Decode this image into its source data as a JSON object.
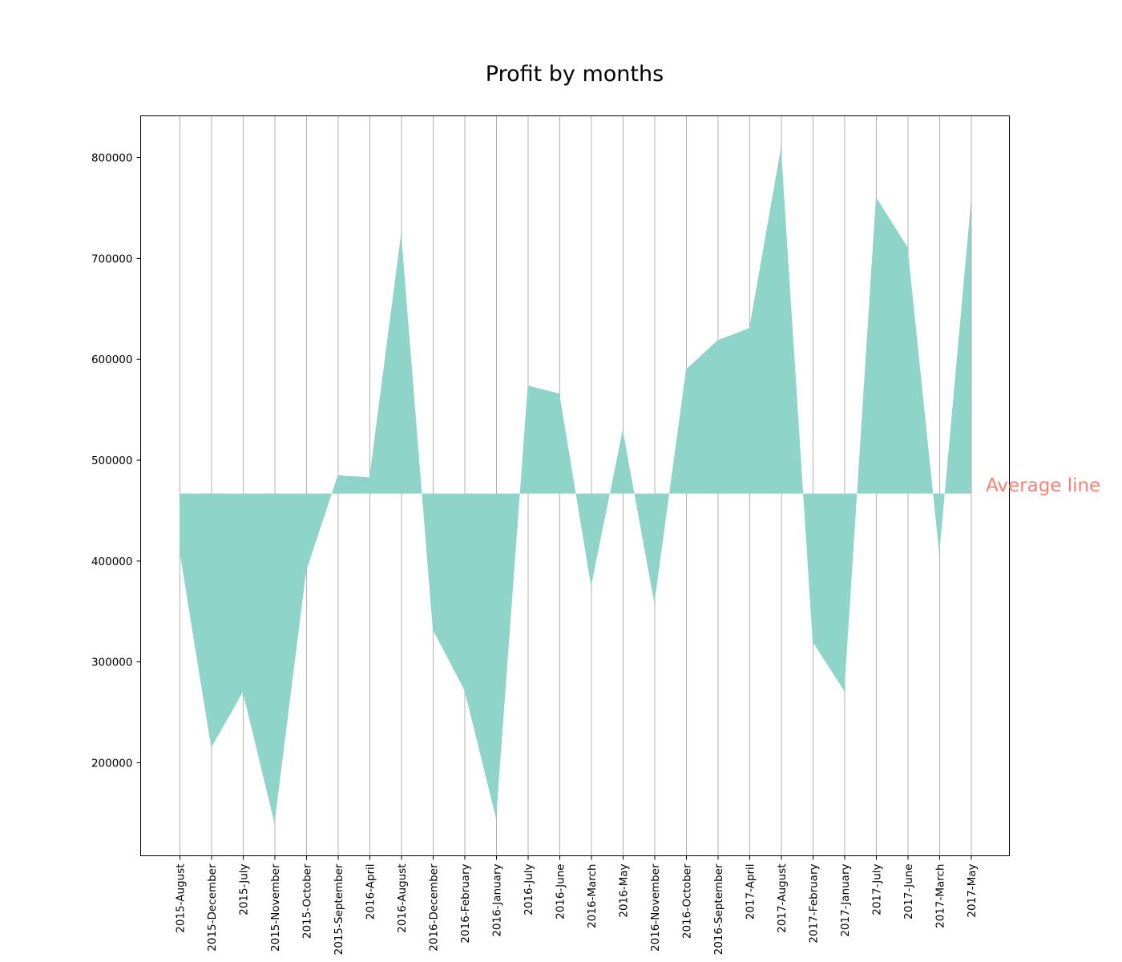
{
  "chart_data": {
    "type": "area",
    "title": "Profit by months",
    "xlabel": "",
    "ylabel": "",
    "categories": [
      "2015-August",
      "2015-December",
      "2015-July",
      "2015-November",
      "2015-October",
      "2015-September",
      "2016-April",
      "2016-August",
      "2016-December",
      "2016-February",
      "2016-January",
      "2016-July",
      "2016-June",
      "2016-March",
      "2016-May",
      "2016-November",
      "2016-October",
      "2016-September",
      "2017-April",
      "2017-August",
      "2017-February",
      "2017-January",
      "2017-July",
      "2017-June",
      "2017-March",
      "2017-May"
    ],
    "values": [
      410000,
      215000,
      270000,
      140000,
      390000,
      485000,
      483000,
      725000,
      332000,
      272000,
      145000,
      574000,
      566000,
      375000,
      530000,
      358000,
      590000,
      619000,
      631000,
      810000,
      320000,
      271000,
      761000,
      711000,
      407000,
      756000
    ],
    "baseline": 467000,
    "ylim": [
      108000,
      842000
    ],
    "yticks": [
      200000,
      300000,
      400000,
      500000,
      600000,
      700000,
      800000
    ],
    "grid": "vertical",
    "fill_color": "#8fd4c8",
    "annotation": {
      "text": "Average line",
      "color": "#fa8072"
    }
  }
}
